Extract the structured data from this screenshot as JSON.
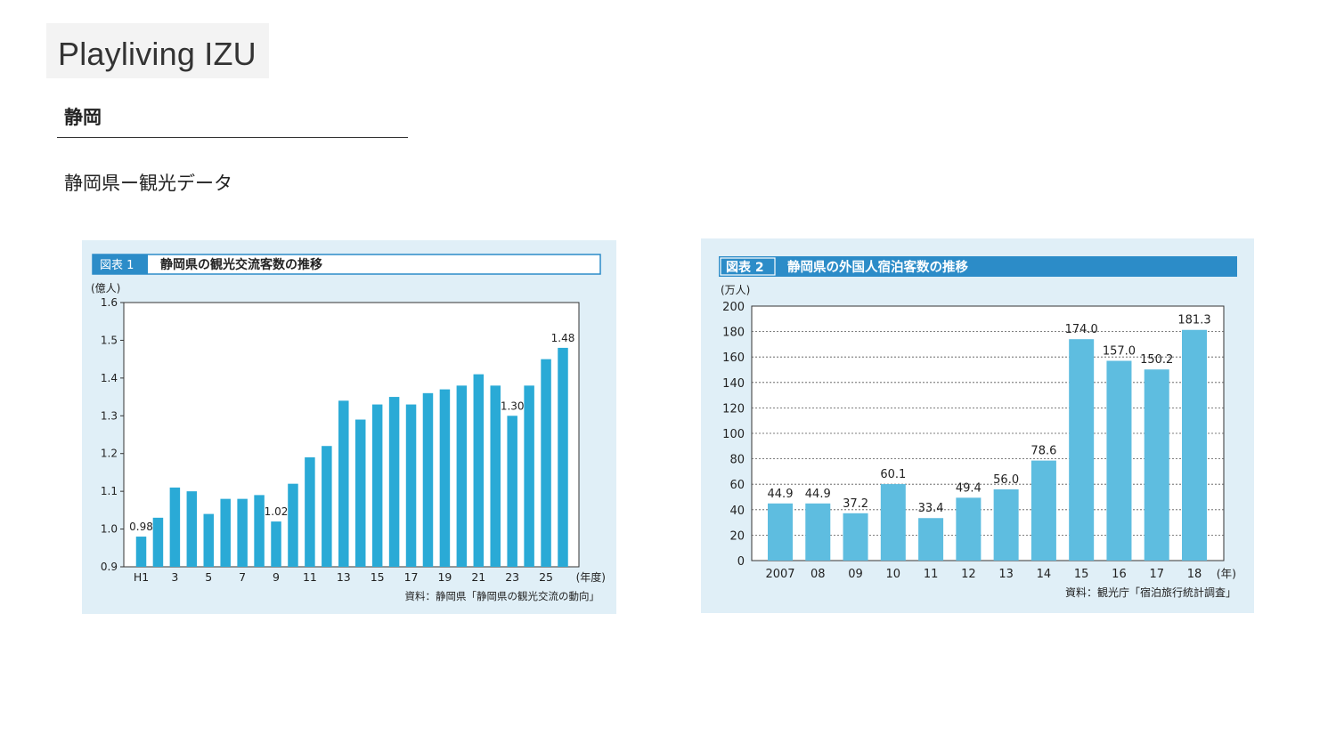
{
  "header": {
    "brand": "Playliving IZU",
    "section_title": "静岡",
    "subtitle": "静岡県ー観光データ"
  },
  "colors": {
    "bar1": "#2aaad6",
    "bar2": "#5ebde0",
    "panel_bg": "#e0eff7",
    "header_blue": "#2c8cc8"
  },
  "chart_data": [
    {
      "type": "bar",
      "badge": "図表 1",
      "title": "静岡県の観光交流客数の推移",
      "unit_label": "(億人)",
      "x_unit_label": "(年度)",
      "source": "資料：静岡県「静岡県の観光交流の動向」",
      "categories": [
        "H1",
        "2",
        "3",
        "4",
        "5",
        "6",
        "7",
        "8",
        "9",
        "10",
        "11",
        "12",
        "13",
        "14",
        "15",
        "16",
        "17",
        "18",
        "19",
        "20",
        "21",
        "22",
        "23",
        "24",
        "25",
        "26"
      ],
      "tick_labels": [
        "H1",
        "",
        "3",
        "",
        "5",
        "",
        "7",
        "",
        "9",
        "",
        "11",
        "",
        "13",
        "",
        "15",
        "",
        "17",
        "",
        "19",
        "",
        "21",
        "",
        "23",
        "",
        "25",
        ""
      ],
      "values": [
        0.98,
        1.03,
        1.11,
        1.1,
        1.04,
        1.08,
        1.08,
        1.09,
        1.02,
        1.12,
        1.19,
        1.22,
        1.34,
        1.29,
        1.33,
        1.35,
        1.33,
        1.36,
        1.37,
        1.38,
        1.41,
        1.38,
        1.3,
        1.38,
        1.45,
        1.48
      ],
      "data_labels": [
        "0.98",
        "",
        "",
        "",
        "",
        "",
        "",
        "",
        "1.02",
        "",
        "",
        "",
        "",
        "",
        "",
        "",
        "",
        "",
        "",
        "",
        "",
        "",
        "1.30",
        "",
        "",
        "1.48"
      ],
      "ylim": [
        0.9,
        1.6
      ],
      "yticks": [
        "0.9",
        "1.0",
        "1.1",
        "1.2",
        "1.3",
        "1.4",
        "1.5",
        "1.6"
      ],
      "grid": false
    },
    {
      "type": "bar",
      "badge": "図表 2",
      "title": "静岡県の外国人宿泊客数の推移",
      "unit_label": "(万人)",
      "x_unit_label": "(年)",
      "source": "資料：観光庁「宿泊旅行統計調査」",
      "categories": [
        "2007",
        "08",
        "09",
        "10",
        "11",
        "12",
        "13",
        "14",
        "15",
        "16",
        "17",
        "18"
      ],
      "tick_labels": [
        "2007",
        "08",
        "09",
        "10",
        "11",
        "12",
        "13",
        "14",
        "15",
        "16",
        "17",
        "18"
      ],
      "values": [
        44.9,
        44.9,
        37.2,
        60.1,
        33.4,
        49.4,
        56.0,
        78.6,
        174.0,
        157.0,
        150.2,
        181.3
      ],
      "data_labels": [
        "44.9",
        "44.9",
        "37.2",
        "60.1",
        "33.4",
        "49.4",
        "56.0",
        "78.6",
        "174.0",
        "157.0",
        "150.2",
        "181.3"
      ],
      "ylim": [
        0,
        200
      ],
      "yticks": [
        "0",
        "20",
        "40",
        "60",
        "80",
        "100",
        "120",
        "140",
        "160",
        "180",
        "200"
      ],
      "grid": true
    }
  ]
}
